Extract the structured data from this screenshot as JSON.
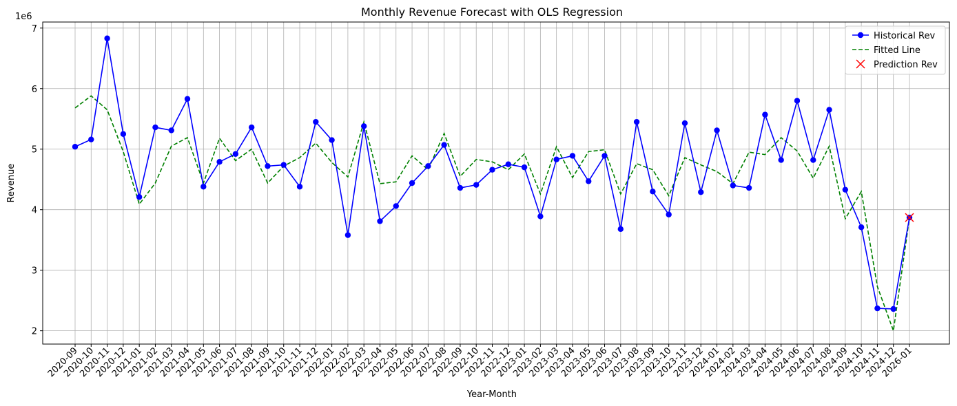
{
  "chart_data": {
    "type": "line",
    "title": "Monthly Revenue Forecast with OLS Regression",
    "xlabel": "Year-Month",
    "ylabel": "Revenue",
    "y_scale_label": "1e6",
    "ylim": [
      1.78,
      7.1
    ],
    "yticks": [
      2,
      3,
      4,
      5,
      6,
      7
    ],
    "grid": true,
    "legend_position": "top-right",
    "categories": [
      "2020-09",
      "2020-10",
      "2020-11",
      "2020-12",
      "2021-01",
      "2021-02",
      "2021-03",
      "2021-04",
      "2021-05",
      "2021-06",
      "2021-07",
      "2021-08",
      "2021-09",
      "2021-10",
      "2021-11",
      "2021-12",
      "2022-01",
      "2022-02",
      "2022-03",
      "2022-04",
      "2022-05",
      "2022-06",
      "2022-07",
      "2022-08",
      "2022-09",
      "2022-10",
      "2022-11",
      "2022-12",
      "2023-01",
      "2023-02",
      "2023-03",
      "2023-04",
      "2023-05",
      "2023-06",
      "2023-07",
      "2023-08",
      "2023-09",
      "2023-10",
      "2023-11",
      "2023-12",
      "2024-01",
      "2024-02",
      "2024-03",
      "2024-04",
      "2024-05",
      "2024-06",
      "2024-07",
      "2024-08",
      "2024-09",
      "2024-10",
      "2024-11",
      "2024-12",
      "2026-01"
    ],
    "series": [
      {
        "name": "Historical Rev",
        "color": "#0000ff",
        "style": "solid-marker",
        "values": [
          5.04,
          5.16,
          6.83,
          5.25,
          4.21,
          5.36,
          5.31,
          5.83,
          4.38,
          4.79,
          4.92,
          5.36,
          4.72,
          4.74,
          4.38,
          5.45,
          5.15,
          3.58,
          5.38,
          3.81,
          4.06,
          4.44,
          4.72,
          5.07,
          4.36,
          4.41,
          4.66,
          4.75,
          4.7,
          3.89,
          4.83,
          4.89,
          4.47,
          4.89,
          3.68,
          5.45,
          4.3,
          3.92,
          5.43,
          4.29,
          5.31,
          4.4,
          4.36,
          5.57,
          4.82,
          5.8,
          4.82,
          5.65,
          4.33,
          3.71,
          2.37,
          2.36,
          3.87
        ]
      },
      {
        "name": "Fitted Line",
        "color": "#008000",
        "style": "dashed",
        "values": [
          5.68,
          5.88,
          5.65,
          4.96,
          4.09,
          4.44,
          5.05,
          5.19,
          4.44,
          5.18,
          4.81,
          5.0,
          4.44,
          4.72,
          4.86,
          5.1,
          4.78,
          4.54,
          5.45,
          4.43,
          4.46,
          4.89,
          4.66,
          5.26,
          4.55,
          4.83,
          4.79,
          4.66,
          4.92,
          4.26,
          5.04,
          4.53,
          4.96,
          4.99,
          4.26,
          4.76,
          4.66,
          4.23,
          4.86,
          4.74,
          4.63,
          4.43,
          4.95,
          4.91,
          5.19,
          4.97,
          4.52,
          5.05,
          3.85,
          4.3,
          2.73,
          2.0,
          3.87
        ]
      },
      {
        "name": "Prediction Rev",
        "color": "#ff0000",
        "style": "x-marker",
        "category": "2026-01",
        "value": 3.87
      }
    ]
  }
}
